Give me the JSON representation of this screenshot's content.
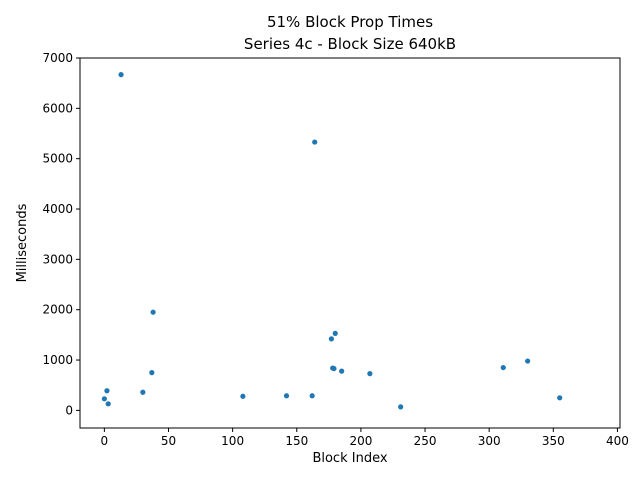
{
  "chart_data": {
    "type": "scatter",
    "title_line1": "51% Block Prop Times",
    "title_line2": "Series 4c - Block Size 640kB",
    "xlabel": "Block Index",
    "ylabel": "Milliseconds",
    "xlim": [
      -19,
      402
    ],
    "ylim": [
      -350,
      7000
    ],
    "xticks": [
      0,
      50,
      100,
      150,
      200,
      250,
      300,
      350,
      400
    ],
    "xtick_labels": [
      "0",
      "50",
      "100",
      "150",
      "200",
      "250",
      "300",
      "350",
      "400"
    ],
    "yticks": [
      0,
      1000,
      2000,
      3000,
      4000,
      5000,
      6000,
      7000
    ],
    "ytick_labels": [
      "0",
      "1000",
      "2000",
      "3000",
      "4000",
      "5000",
      "6000",
      "7000"
    ],
    "grid": false,
    "marker_color": "#1f77b4",
    "series": [
      {
        "x": [
          0,
          2,
          3,
          13,
          30,
          37,
          38,
          108,
          142,
          162,
          164,
          177,
          178,
          179,
          180,
          185,
          207,
          231,
          311,
          330,
          355
        ],
        "y": [
          230,
          390,
          130,
          6670,
          360,
          750,
          1950,
          280,
          290,
          290,
          5330,
          1420,
          840,
          830,
          1530,
          780,
          730,
          70,
          850,
          980,
          250
        ]
      }
    ]
  }
}
